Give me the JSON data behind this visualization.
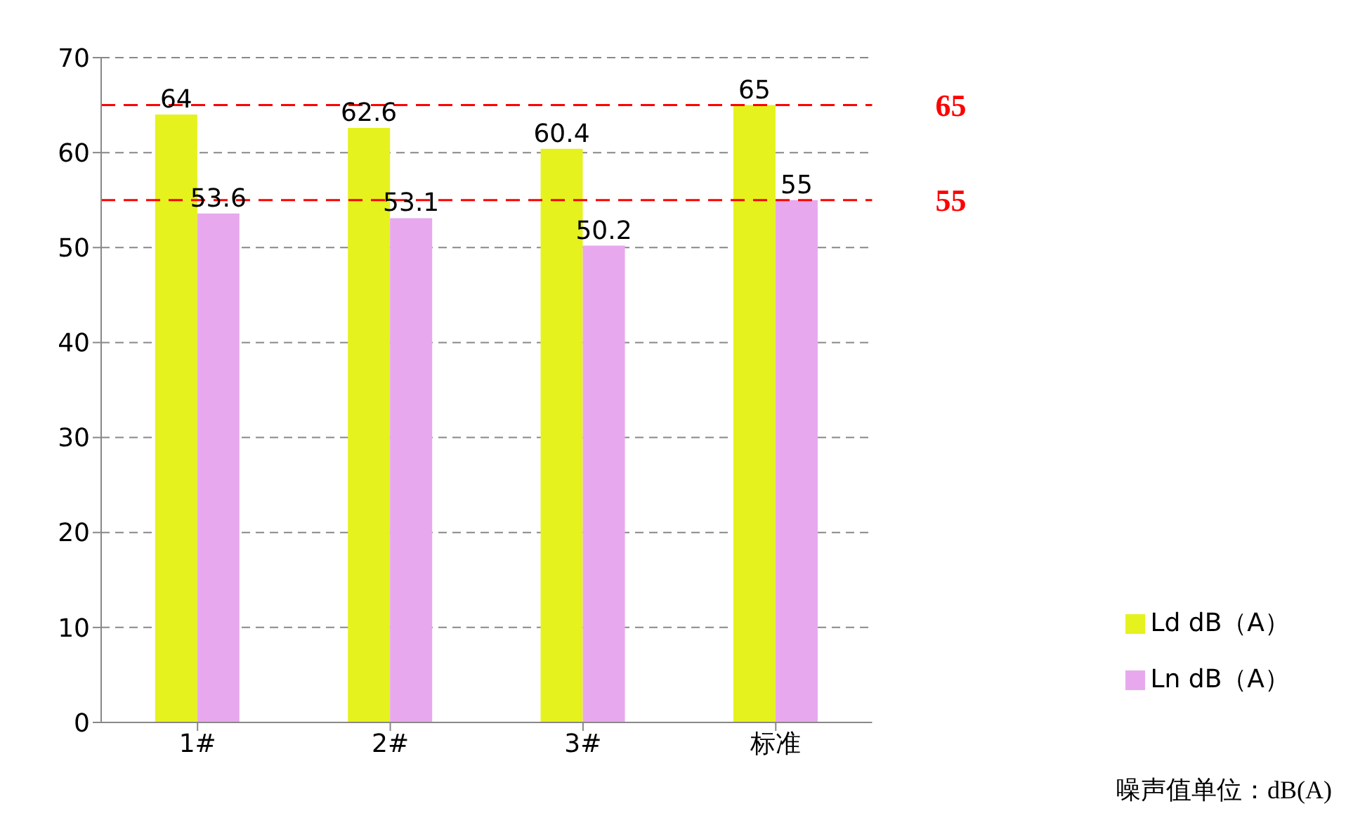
{
  "chart_data": {
    "type": "bar",
    "categories": [
      "1#",
      "2#",
      "3#",
      "标准"
    ],
    "series": [
      {
        "name": "Ld dB（A）",
        "color": "#e5f21e",
        "values": [
          64,
          62.6,
          60.4,
          65
        ]
      },
      {
        "name": "Ln dB（A）",
        "color": "#e8a8ee",
        "values": [
          53.6,
          53.1,
          50.2,
          55
        ]
      }
    ],
    "ylim": [
      0,
      70
    ],
    "yticks": [
      0,
      10,
      20,
      30,
      40,
      50,
      60,
      70
    ],
    "grid": "y",
    "legend": "bottom right",
    "data_labels": true,
    "ref_lines": [
      {
        "axis": "y",
        "value": 65,
        "label": "65",
        "color": "#ff0000",
        "line_style": "dashed"
      },
      {
        "axis": "y",
        "value": 55,
        "label": "55",
        "color": "#ff0000",
        "line_style": "dashed"
      }
    ],
    "annotations": [
      "噪声值单位：dB(A)"
    ]
  }
}
